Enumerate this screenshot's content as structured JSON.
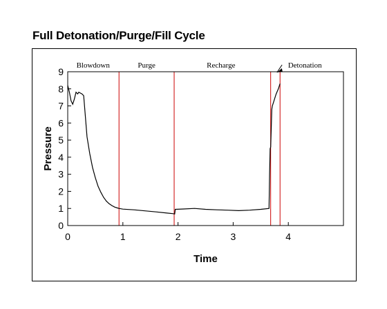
{
  "chart_data": {
    "type": "line",
    "title": "Full Detonation/Purge/Fill Cycle",
    "xlabel": "Time",
    "ylabel": "Pressure",
    "xlim": [
      0,
      5
    ],
    "ylim": [
      0,
      9
    ],
    "x_ticks": [
      0,
      1,
      2,
      3,
      4
    ],
    "y_ticks": [
      0,
      1,
      2,
      3,
      4,
      5,
      6,
      7,
      8,
      9
    ],
    "grid": false,
    "legend": "none",
    "colors": {
      "line": "#000000",
      "markers": "#cc0000"
    },
    "phase_boundaries": [
      0.93,
      1.93,
      3.68,
      3.85
    ],
    "phase_labels": [
      {
        "label": "Blowdown",
        "x": 0.46
      },
      {
        "label": "Purge",
        "x": 1.43
      },
      {
        "label": "Recharge",
        "x": 2.78
      },
      {
        "label": "Detonation",
        "x": 4.3,
        "arrow_to": 3.77
      }
    ],
    "series": [
      {
        "x": [
          0,
          0.03,
          0.06,
          0.09,
          0.12,
          0.15,
          0.18,
          0.2,
          0.23,
          0.26,
          0.29,
          0.32,
          0.35,
          0.4,
          0.45,
          0.5,
          0.55,
          0.6,
          0.65,
          0.7,
          0.75,
          0.8,
          0.85,
          0.9,
          0.93,
          1.0,
          1.2,
          1.4,
          1.6,
          1.8,
          1.9,
          1.94,
          1.95,
          2.1,
          2.3,
          2.5,
          2.7,
          2.9,
          3.1,
          3.3,
          3.5,
          3.65,
          3.66,
          3.67,
          3.68,
          3.69,
          3.7,
          3.71,
          3.72,
          3.74,
          3.76,
          3.78,
          3.8,
          3.82,
          3.84,
          3.85
        ],
        "y": [
          8.2,
          7.8,
          7.3,
          7.1,
          7.4,
          7.8,
          7.7,
          7.8,
          7.75,
          7.7,
          7.6,
          6.4,
          5.2,
          4.2,
          3.4,
          2.8,
          2.3,
          1.95,
          1.65,
          1.43,
          1.28,
          1.17,
          1.08,
          1.03,
          1.0,
          0.96,
          0.92,
          0.86,
          0.8,
          0.73,
          0.7,
          0.68,
          0.95,
          0.97,
          1.0,
          0.95,
          0.92,
          0.9,
          0.87,
          0.9,
          0.95,
          1.0,
          3.0,
          4.5,
          4.6,
          5.7,
          6.8,
          7.0,
          7.1,
          7.3,
          7.5,
          7.7,
          7.85,
          8.0,
          8.2,
          8.3
        ]
      }
    ]
  }
}
